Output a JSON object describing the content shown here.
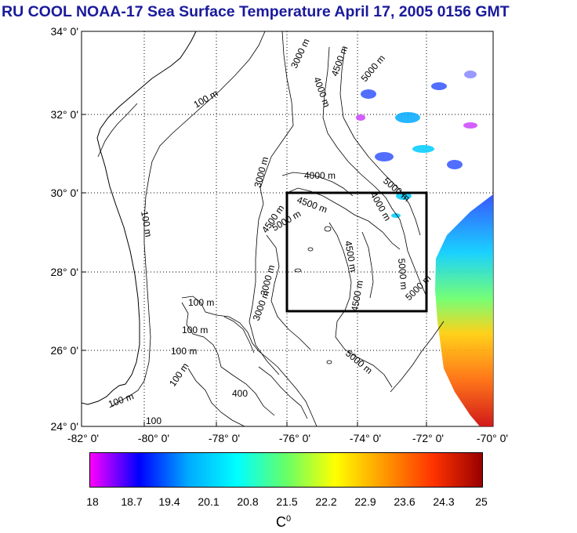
{
  "title": "RU COOL  NOAA-17 Sea Surface Temperature April 17, 2005 0156 GMT",
  "map": {
    "lat_labels": [
      "34° 0'",
      "32° 0'",
      "30° 0'",
      "28° 0'",
      "26° 0'",
      "24° 0'"
    ],
    "lon_labels": [
      "-82° 0'",
      "-80° 0'",
      "-78° 0'",
      "-76° 0'",
      "-74° 0'",
      "-72° 0'",
      "-70° 0'"
    ],
    "lat_range": [
      24,
      34
    ],
    "lon_range": [
      -82,
      -70
    ],
    "study_box": {
      "lon": [
        -76,
        -72
      ],
      "lat": [
        27,
        30
      ]
    },
    "contour_labels": [
      "100 m",
      "100 m",
      "100 m",
      "100 m",
      "100 m",
      "100 m",
      "100 m",
      "3000 m",
      "3000 m",
      "3000 m",
      "3000 m",
      "4000 m",
      "4000 m",
      "4000 m",
      "4500 m",
      "4500 m",
      "4500 m",
      "4500 m",
      "4500 m",
      "5000 m",
      "5000 m",
      "5000 m",
      "5000 m",
      "5000 m",
      "5000 m",
      "400",
      "100"
    ]
  },
  "colorbar": {
    "ticks": [
      "18",
      "18.7",
      "19.4",
      "20.1",
      "20.8",
      "21.5",
      "22.2",
      "22.9",
      "23.6",
      "24.3",
      "25"
    ],
    "unit": "C",
    "unit_sup": "0",
    "colors": [
      "#ff00ff",
      "#0000ff",
      "#00aaff",
      "#00ffff",
      "#66ff66",
      "#ffff00",
      "#ff9900",
      "#ff3300",
      "#990000"
    ]
  }
}
